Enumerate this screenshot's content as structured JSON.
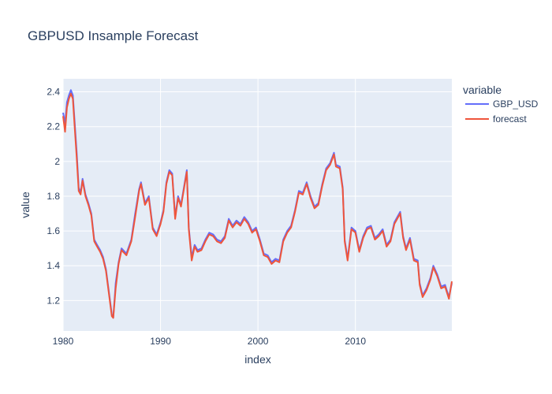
{
  "chart_data": {
    "type": "line",
    "title": "GBPUSD Insample Forecast",
    "xlabel": "index",
    "ylabel": "value",
    "xlim": [
      1980,
      2019.9
    ],
    "ylim": [
      1.025,
      2.475
    ],
    "x_ticks": [
      1980,
      1990,
      2000,
      2010
    ],
    "x_tick_labels": [
      "1980",
      "1990",
      "2000",
      "2010"
    ],
    "y_ticks": [
      1.2,
      1.4,
      1.6,
      1.8,
      2.0,
      2.2,
      2.4
    ],
    "y_tick_labels": [
      "1.2",
      "1.4",
      "1.6",
      "1.8",
      "2",
      "2.2",
      "2.4"
    ],
    "grid": true,
    "legend_title": "variable",
    "legend_position": "right",
    "plot_background": "#e5ecf6",
    "series": [
      {
        "name": "GBP_USD",
        "color": "#636efa",
        "points": [
          [
            1980.0,
            2.28
          ],
          [
            1980.2,
            2.22
          ],
          [
            1980.4,
            2.34
          ],
          [
            1980.6,
            2.38
          ],
          [
            1980.8,
            2.41
          ],
          [
            1981.0,
            2.38
          ],
          [
            1981.2,
            2.22
          ],
          [
            1981.4,
            2.05
          ],
          [
            1981.6,
            1.85
          ],
          [
            1981.8,
            1.82
          ],
          [
            1982.0,
            1.9
          ],
          [
            1982.3,
            1.81
          ],
          [
            1982.6,
            1.76
          ],
          [
            1982.9,
            1.7
          ],
          [
            1983.2,
            1.55
          ],
          [
            1983.5,
            1.52
          ],
          [
            1983.8,
            1.49
          ],
          [
            1984.1,
            1.45
          ],
          [
            1984.4,
            1.38
          ],
          [
            1984.7,
            1.25
          ],
          [
            1985.0,
            1.12
          ],
          [
            1985.15,
            1.1
          ],
          [
            1985.4,
            1.3
          ],
          [
            1985.7,
            1.42
          ],
          [
            1986.0,
            1.5
          ],
          [
            1986.5,
            1.47
          ],
          [
            1987.0,
            1.55
          ],
          [
            1987.4,
            1.7
          ],
          [
            1987.8,
            1.84
          ],
          [
            1988.0,
            1.88
          ],
          [
            1988.4,
            1.76
          ],
          [
            1988.8,
            1.8
          ],
          [
            1989.2,
            1.62
          ],
          [
            1989.6,
            1.58
          ],
          [
            1990.0,
            1.65
          ],
          [
            1990.3,
            1.72
          ],
          [
            1990.6,
            1.88
          ],
          [
            1990.9,
            1.95
          ],
          [
            1991.2,
            1.93
          ],
          [
            1991.5,
            1.68
          ],
          [
            1991.8,
            1.8
          ],
          [
            1992.1,
            1.75
          ],
          [
            1992.4,
            1.85
          ],
          [
            1992.7,
            1.95
          ],
          [
            1992.9,
            1.62
          ],
          [
            1993.2,
            1.45
          ],
          [
            1993.5,
            1.52
          ],
          [
            1993.8,
            1.49
          ],
          [
            1994.2,
            1.5
          ],
          [
            1994.6,
            1.55
          ],
          [
            1995.0,
            1.59
          ],
          [
            1995.4,
            1.58
          ],
          [
            1995.8,
            1.55
          ],
          [
            1996.2,
            1.54
          ],
          [
            1996.6,
            1.57
          ],
          [
            1997.0,
            1.67
          ],
          [
            1997.4,
            1.63
          ],
          [
            1997.8,
            1.66
          ],
          [
            1998.2,
            1.64
          ],
          [
            1998.6,
            1.68
          ],
          [
            1999.0,
            1.65
          ],
          [
            1999.4,
            1.6
          ],
          [
            1999.8,
            1.62
          ],
          [
            2000.2,
            1.55
          ],
          [
            2000.6,
            1.47
          ],
          [
            2001.0,
            1.46
          ],
          [
            2001.4,
            1.42
          ],
          [
            2001.8,
            1.44
          ],
          [
            2002.2,
            1.43
          ],
          [
            2002.6,
            1.55
          ],
          [
            2003.0,
            1.6
          ],
          [
            2003.4,
            1.63
          ],
          [
            2003.8,
            1.72
          ],
          [
            2004.2,
            1.83
          ],
          [
            2004.6,
            1.82
          ],
          [
            2005.0,
            1.88
          ],
          [
            2005.4,
            1.8
          ],
          [
            2005.8,
            1.74
          ],
          [
            2006.2,
            1.76
          ],
          [
            2006.6,
            1.87
          ],
          [
            2007.0,
            1.96
          ],
          [
            2007.4,
            1.99
          ],
          [
            2007.8,
            2.05
          ],
          [
            2008.0,
            1.98
          ],
          [
            2008.4,
            1.97
          ],
          [
            2008.7,
            1.85
          ],
          [
            2008.9,
            1.55
          ],
          [
            2009.2,
            1.44
          ],
          [
            2009.6,
            1.62
          ],
          [
            2010.0,
            1.6
          ],
          [
            2010.4,
            1.49
          ],
          [
            2010.8,
            1.57
          ],
          [
            2011.2,
            1.62
          ],
          [
            2011.6,
            1.63
          ],
          [
            2012.0,
            1.56
          ],
          [
            2012.4,
            1.58
          ],
          [
            2012.8,
            1.61
          ],
          [
            2013.2,
            1.52
          ],
          [
            2013.6,
            1.55
          ],
          [
            2014.0,
            1.65
          ],
          [
            2014.4,
            1.69
          ],
          [
            2014.6,
            1.71
          ],
          [
            2014.9,
            1.57
          ],
          [
            2015.2,
            1.5
          ],
          [
            2015.6,
            1.56
          ],
          [
            2016.0,
            1.44
          ],
          [
            2016.4,
            1.43
          ],
          [
            2016.6,
            1.3
          ],
          [
            2016.9,
            1.23
          ],
          [
            2017.3,
            1.27
          ],
          [
            2017.7,
            1.33
          ],
          [
            2018.0,
            1.4
          ],
          [
            2018.4,
            1.35
          ],
          [
            2018.8,
            1.28
          ],
          [
            2019.2,
            1.29
          ],
          [
            2019.6,
            1.22
          ],
          [
            2019.9,
            1.3
          ]
        ]
      },
      {
        "name": "forecast",
        "color": "#ef553b",
        "points": [
          [
            1980.0,
            2.26
          ],
          [
            1980.2,
            2.17
          ],
          [
            1980.4,
            2.31
          ],
          [
            1980.6,
            2.36
          ],
          [
            1980.8,
            2.39
          ],
          [
            1981.0,
            2.36
          ],
          [
            1981.2,
            2.19
          ],
          [
            1981.4,
            2.02
          ],
          [
            1981.6,
            1.83
          ],
          [
            1981.8,
            1.81
          ],
          [
            1982.0,
            1.89
          ],
          [
            1982.3,
            1.8
          ],
          [
            1982.6,
            1.75
          ],
          [
            1982.9,
            1.69
          ],
          [
            1983.2,
            1.54
          ],
          [
            1983.5,
            1.51
          ],
          [
            1983.8,
            1.48
          ],
          [
            1984.1,
            1.44
          ],
          [
            1984.4,
            1.37
          ],
          [
            1984.7,
            1.24
          ],
          [
            1985.0,
            1.11
          ],
          [
            1985.15,
            1.1
          ],
          [
            1985.4,
            1.27
          ],
          [
            1985.7,
            1.41
          ],
          [
            1986.0,
            1.49
          ],
          [
            1986.5,
            1.46
          ],
          [
            1987.0,
            1.54
          ],
          [
            1987.4,
            1.68
          ],
          [
            1987.8,
            1.83
          ],
          [
            1988.0,
            1.87
          ],
          [
            1988.4,
            1.75
          ],
          [
            1988.8,
            1.79
          ],
          [
            1989.2,
            1.61
          ],
          [
            1989.6,
            1.57
          ],
          [
            1990.0,
            1.64
          ],
          [
            1990.3,
            1.71
          ],
          [
            1990.6,
            1.87
          ],
          [
            1990.9,
            1.94
          ],
          [
            1991.2,
            1.92
          ],
          [
            1991.5,
            1.67
          ],
          [
            1991.8,
            1.79
          ],
          [
            1992.1,
            1.74
          ],
          [
            1992.4,
            1.84
          ],
          [
            1992.7,
            1.94
          ],
          [
            1992.9,
            1.61
          ],
          [
            1993.2,
            1.43
          ],
          [
            1993.5,
            1.51
          ],
          [
            1993.8,
            1.48
          ],
          [
            1994.2,
            1.49
          ],
          [
            1994.6,
            1.54
          ],
          [
            1995.0,
            1.58
          ],
          [
            1995.4,
            1.57
          ],
          [
            1995.8,
            1.54
          ],
          [
            1996.2,
            1.53
          ],
          [
            1996.6,
            1.56
          ],
          [
            1997.0,
            1.66
          ],
          [
            1997.4,
            1.62
          ],
          [
            1997.8,
            1.65
          ],
          [
            1998.2,
            1.63
          ],
          [
            1998.6,
            1.67
          ],
          [
            1999.0,
            1.64
          ],
          [
            1999.4,
            1.59
          ],
          [
            1999.8,
            1.61
          ],
          [
            2000.2,
            1.54
          ],
          [
            2000.6,
            1.46
          ],
          [
            2001.0,
            1.45
          ],
          [
            2001.4,
            1.41
          ],
          [
            2001.8,
            1.43
          ],
          [
            2002.2,
            1.42
          ],
          [
            2002.6,
            1.54
          ],
          [
            2003.0,
            1.59
          ],
          [
            2003.4,
            1.62
          ],
          [
            2003.8,
            1.71
          ],
          [
            2004.2,
            1.82
          ],
          [
            2004.6,
            1.81
          ],
          [
            2005.0,
            1.87
          ],
          [
            2005.4,
            1.79
          ],
          [
            2005.8,
            1.73
          ],
          [
            2006.2,
            1.75
          ],
          [
            2006.6,
            1.86
          ],
          [
            2007.0,
            1.95
          ],
          [
            2007.4,
            1.98
          ],
          [
            2007.8,
            2.04
          ],
          [
            2008.0,
            1.97
          ],
          [
            2008.4,
            1.96
          ],
          [
            2008.7,
            1.84
          ],
          [
            2008.9,
            1.54
          ],
          [
            2009.2,
            1.43
          ],
          [
            2009.6,
            1.61
          ],
          [
            2010.0,
            1.59
          ],
          [
            2010.4,
            1.48
          ],
          [
            2010.8,
            1.56
          ],
          [
            2011.2,
            1.61
          ],
          [
            2011.6,
            1.62
          ],
          [
            2012.0,
            1.55
          ],
          [
            2012.4,
            1.57
          ],
          [
            2012.8,
            1.6
          ],
          [
            2013.2,
            1.51
          ],
          [
            2013.6,
            1.54
          ],
          [
            2014.0,
            1.64
          ],
          [
            2014.4,
            1.68
          ],
          [
            2014.6,
            1.7
          ],
          [
            2014.9,
            1.56
          ],
          [
            2015.2,
            1.49
          ],
          [
            2015.6,
            1.55
          ],
          [
            2016.0,
            1.43
          ],
          [
            2016.4,
            1.42
          ],
          [
            2016.6,
            1.29
          ],
          [
            2016.9,
            1.22
          ],
          [
            2017.3,
            1.26
          ],
          [
            2017.7,
            1.32
          ],
          [
            2018.0,
            1.39
          ],
          [
            2018.4,
            1.34
          ],
          [
            2018.8,
            1.27
          ],
          [
            2019.2,
            1.28
          ],
          [
            2019.6,
            1.21
          ],
          [
            2019.9,
            1.31
          ]
        ]
      }
    ]
  }
}
